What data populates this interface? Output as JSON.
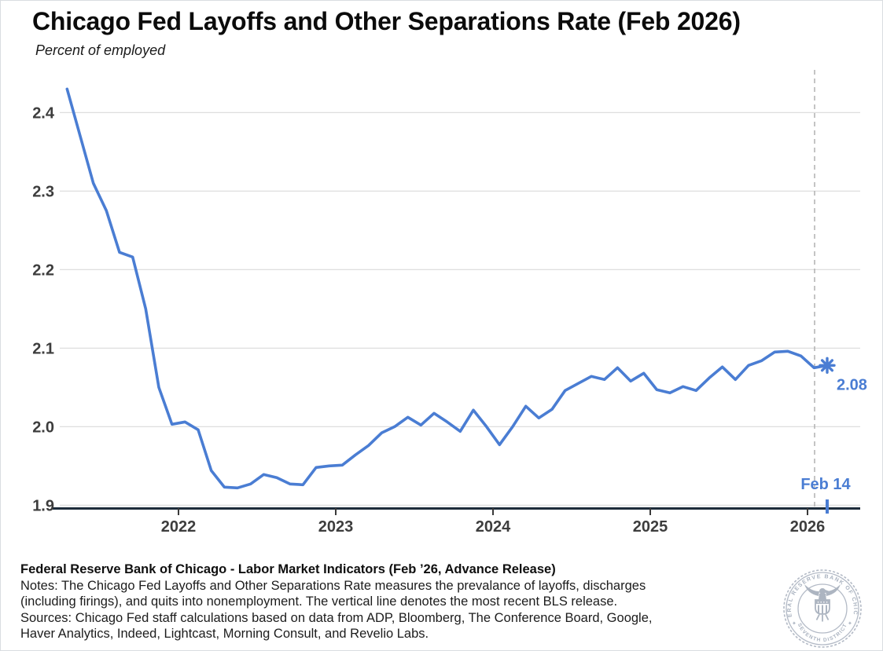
{
  "header": {
    "title": "Chicago Fed Layoffs and Other Separations Rate (Feb 2026)",
    "subtitle": "Percent of employed"
  },
  "chart_data": {
    "type": "line",
    "title": "Chicago Fed Layoffs and Other Separations Rate (Feb 2026)",
    "ylabel": "Percent of employed",
    "ylim": [
      1.9,
      2.46
    ],
    "y_ticks": [
      2.4,
      2.3,
      2.2,
      2.1,
      2.0,
      1.9
    ],
    "x_ticks": [
      2022,
      2023,
      2024,
      2025,
      2026
    ],
    "grid": "horizontal",
    "legend": "none",
    "series": [
      {
        "name": "Chicago Fed Layoffs and Other Separations Rate",
        "color": "#4a7dd3",
        "months": [
          "2021-04",
          "2021-05",
          "2021-06",
          "2021-07",
          "2021-08",
          "2021-09",
          "2021-10",
          "2021-11",
          "2021-12",
          "2022-01",
          "2022-02",
          "2022-03",
          "2022-04",
          "2022-05",
          "2022-06",
          "2022-07",
          "2022-08",
          "2022-09",
          "2022-10",
          "2022-11",
          "2022-12",
          "2023-01",
          "2023-02",
          "2023-03",
          "2023-04",
          "2023-05",
          "2023-06",
          "2023-07",
          "2023-08",
          "2023-09",
          "2023-10",
          "2023-11",
          "2023-12",
          "2024-01",
          "2024-02",
          "2024-03",
          "2024-04",
          "2024-05",
          "2024-06",
          "2024-07",
          "2024-08",
          "2024-09",
          "2024-10",
          "2024-11",
          "2024-12",
          "2025-01",
          "2025-02",
          "2025-03",
          "2025-04",
          "2025-05",
          "2025-06",
          "2025-07",
          "2025-08",
          "2025-09",
          "2025-10",
          "2025-11",
          "2025-12",
          "2026-01",
          "2026-02"
        ],
        "values": [
          2.43,
          2.37,
          2.31,
          2.275,
          2.222,
          2.216,
          2.15,
          2.05,
          2.003,
          2.006,
          1.996,
          1.944,
          1.923,
          1.922,
          1.927,
          1.939,
          1.935,
          1.927,
          1.926,
          1.948,
          1.95,
          1.951,
          1.964,
          1.976,
          1.992,
          2.0,
          2.012,
          2.002,
          2.017,
          2.006,
          1.994,
          2.021,
          2.0,
          1.977,
          2.0,
          2.026,
          2.011,
          2.022,
          2.046,
          2.055,
          2.064,
          2.06,
          2.075,
          2.058,
          2.068,
          2.047,
          2.043,
          2.051,
          2.046,
          2.062,
          2.076,
          2.06,
          2.078,
          2.084,
          2.095,
          2.096,
          2.09,
          2.075,
          2.078
        ]
      }
    ],
    "annotations": {
      "release_vline": {
        "label": "Feb 14",
        "style": "dashed",
        "note": "most recent BLS release"
      },
      "endpoint": {
        "month": "2026-02",
        "value": 2.08,
        "label": "2.08",
        "marker": "asterisk"
      }
    }
  },
  "footer": {
    "credit": "Federal Reserve Bank of Chicago - Labor Market Indicators (Feb ’26, Advance Release)",
    "notes_line1": "Notes: The Chicago Fed Layoffs and Other Separations Rate measures the prevalance of layoffs, discharges",
    "notes_line2": "(including firings), and quits into nonemployment. The vertical line denotes the most recent BLS release.",
    "sources_line1": "Sources: Chicago Fed staff calculations based on data from ADP, Bloomberg, The Conference Board, Google,",
    "sources_line2": "Haver Analytics, Indeed, Lightcast, Morning Consult, and Revelio Labs."
  },
  "seal": {
    "ring_text": "FEDERAL RESERVE BANK OF CHICAGO",
    "bottom_text": "SEVENTH DISTRICT"
  },
  "colors": {
    "line": "#4a7dd3",
    "annotation": "#4a7dd3",
    "axis": "#1d2c3a",
    "grid": "#d9d9d9",
    "dashed_line": "#b5b5b5",
    "tick_label": "#3d3d3d",
    "seal": "#adb5c1"
  }
}
